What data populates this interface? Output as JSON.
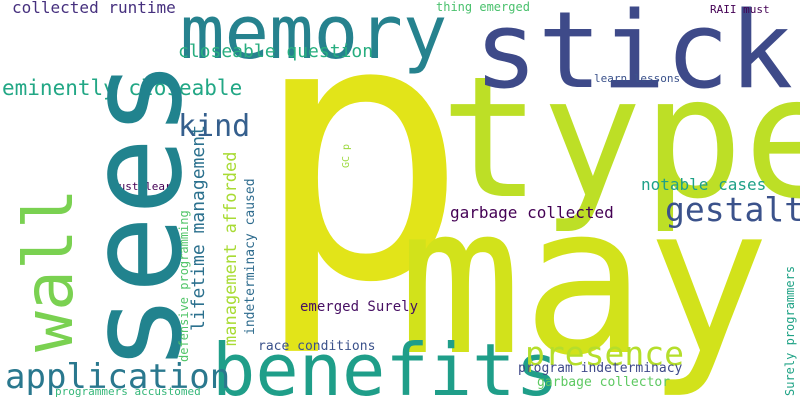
{
  "words": {
    "p": "p",
    "type": "type",
    "may": "may",
    "sees": "sees",
    "sticks": "sticks",
    "memory": "memory",
    "benefits": "benefits",
    "wall": "wall",
    "application": "application",
    "presence": "presence",
    "gestalt": "gestalt",
    "kind": "kind",
    "eminently_closeable": "eminently closeable",
    "closeable_question": "closeable question",
    "collected_runtime": "collected runtime",
    "garbage_collected": "garbage collected",
    "notable_cases": "notable cases",
    "lifetime_management": "lifetime management",
    "management_afforded": "management afforded",
    "indeterminacy_caused": "indeterminacy caused",
    "defensive_programming": "defensive programming",
    "programmers_accustomed": "programmers accustomed",
    "race_conditions": "race conditions",
    "program_indeterminacy": "program indeterminacy",
    "garbage_collector": "garbage collector",
    "surely_programmers": "Surely programmers",
    "emerged_surely": "emerged Surely",
    "thing_emerged": "thing emerged",
    "raii_must": "RAII must",
    "learn_lessons": "learn lessons",
    "must_learn": "must learn",
    "gc_p": "GC p"
  },
  "colors": {
    "p": "#e2e419",
    "type": "#bddf26",
    "may": "#d2e21b",
    "sees": "#21838e",
    "sticks": "#3e4a89",
    "memory": "#26828e",
    "benefits": "#1f9e89",
    "wall": "#7ad151",
    "application": "#2a788e",
    "presence": "#b5de2b",
    "gestalt": "#3b528b",
    "kind": "#355f8d",
    "eminently_closeable": "#22a785",
    "closeable_question": "#28ae80",
    "collected_runtime": "#46307e",
    "garbage_collected": "#440154",
    "notable_cases": "#1fa188",
    "lifetime_management": "#2c718e",
    "management_afforded": "#a8db34",
    "indeterminacy_caused": "#2f6c8e",
    "defensive_programming": "#52c569",
    "programmers_accustomed": "#35b779",
    "race_conditions": "#3b528b",
    "program_indeterminacy": "#3e4989",
    "garbage_collector": "#5ec962",
    "surely_programmers": "#20a386",
    "emerged_surely": "#471063",
    "thing_emerged": "#4ac16d",
    "raii_must": "#440154",
    "learn_lessons": "#3b528b",
    "must_learn": "#440154",
    "gc_p": "#9bd93c"
  }
}
